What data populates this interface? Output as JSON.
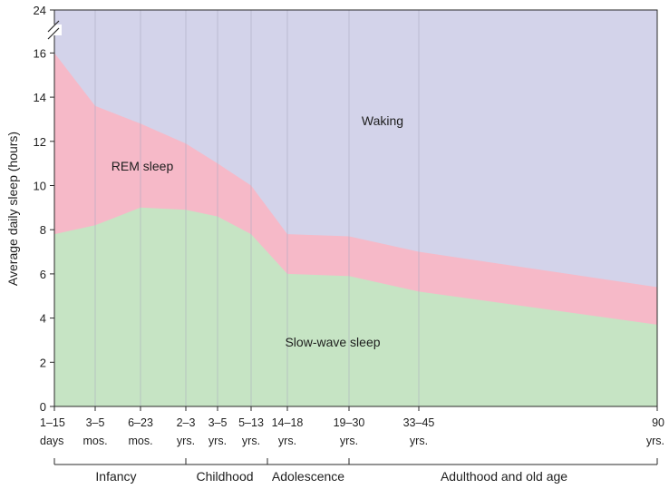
{
  "chart_data": {
    "type": "area",
    "stacked": true,
    "ylabel": "Average daily sleep (hours)",
    "xlabel": "",
    "ylim": [
      0,
      24
    ],
    "axis_break": "between 16 and 24 on y-axis",
    "y_ticks": [
      0,
      2,
      4,
      6,
      8,
      10,
      12,
      14,
      16,
      24
    ],
    "grid": "vertical lines at age ticks",
    "x_ticks": [
      {
        "line1": "1–15",
        "line2": "days"
      },
      {
        "line1": "3–5",
        "line2": "mos."
      },
      {
        "line1": "6–23",
        "line2": "mos."
      },
      {
        "line1": "2–3",
        "line2": "yrs."
      },
      {
        "line1": "3–5",
        "line2": "yrs."
      },
      {
        "line1": "5–13",
        "line2": "yrs."
      },
      {
        "line1": "14–18",
        "line2": "yrs."
      },
      {
        "line1": "19–30",
        "line2": "yrs."
      },
      {
        "line1": "33–45",
        "line2": "yrs."
      },
      {
        "line1": "90",
        "line2": "yrs."
      }
    ],
    "groups": [
      "Infancy",
      "Childhood",
      "Adolescence",
      "Adulthood and old age"
    ],
    "series": [
      {
        "name": "Slow-wave sleep",
        "color": "#c6e4c4",
        "values": [
          7.8,
          8.2,
          9.0,
          8.9,
          8.6,
          7.8,
          6.0,
          5.9,
          5.2,
          3.7
        ]
      },
      {
        "name": "REM sleep",
        "color": "#f6b9c8",
        "values": [
          8.2,
          5.4,
          3.8,
          3.0,
          2.4,
          2.2,
          1.8,
          1.8,
          1.8,
          1.7
        ]
      },
      {
        "name": "Waking",
        "color": "#d3d3ea",
        "values": [
          8.0,
          10.4,
          11.2,
          12.1,
          13.0,
          14.0,
          16.2,
          16.3,
          17.0,
          18.6
        ]
      }
    ],
    "total_sleep": [
      16.0,
      13.6,
      12.8,
      11.9,
      11.0,
      10.0,
      7.8,
      7.7,
      7.0,
      5.4
    ]
  }
}
